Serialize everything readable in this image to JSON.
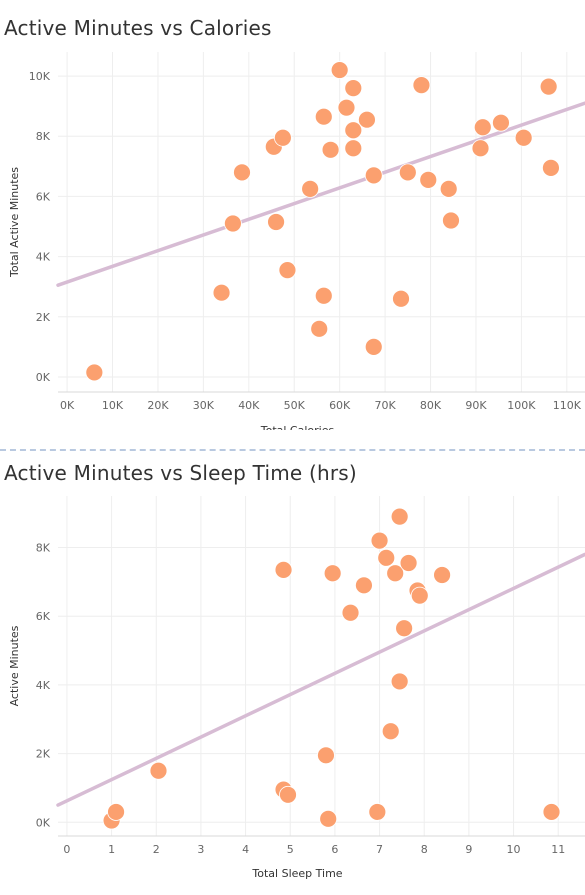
{
  "colors": {
    "point": "#fba06f",
    "trend": "#d7bcd4",
    "grid": "#eeeeee",
    "text": "#666666"
  },
  "chart_data": [
    {
      "type": "scatter",
      "title": "Active Minutes vs Calories",
      "xlabel": "Total Calories",
      "ylabel": "Total Active Minutes",
      "xlim": [
        -2000,
        114000
      ],
      "ylim": [
        -500,
        10800
      ],
      "x_ticks": [
        0,
        10000,
        20000,
        30000,
        40000,
        50000,
        60000,
        70000,
        80000,
        90000,
        100000,
        110000
      ],
      "x_tick_labels": [
        "0K",
        "10K",
        "20K",
        "30K",
        "40K",
        "50K",
        "60K",
        "70K",
        "80K",
        "90K",
        "100K",
        "110K"
      ],
      "y_ticks": [
        0,
        2000,
        4000,
        6000,
        8000,
        10000
      ],
      "y_tick_labels": [
        "0K",
        "2K",
        "4K",
        "6K",
        "8K",
        "10K"
      ],
      "trendline": [
        [
          -2000,
          3050
        ],
        [
          114000,
          9100
        ]
      ],
      "points": [
        [
          6000,
          150
        ],
        [
          34000,
          2800
        ],
        [
          36500,
          5100
        ],
        [
          38500,
          6800
        ],
        [
          45500,
          7650
        ],
        [
          46000,
          5150
        ],
        [
          47500,
          7950
        ],
        [
          48500,
          3550
        ],
        [
          53500,
          6250
        ],
        [
          55500,
          1600
        ],
        [
          56500,
          8650
        ],
        [
          56500,
          2700
        ],
        [
          58000,
          7550
        ],
        [
          60000,
          10200
        ],
        [
          61500,
          8950
        ],
        [
          63000,
          9600
        ],
        [
          63000,
          8200
        ],
        [
          63000,
          7600
        ],
        [
          66000,
          8550
        ],
        [
          67500,
          1000
        ],
        [
          67500,
          6700
        ],
        [
          73500,
          2600
        ],
        [
          75000,
          6800
        ],
        [
          78000,
          9700
        ],
        [
          79500,
          6550
        ],
        [
          84000,
          6250
        ],
        [
          84500,
          5200
        ],
        [
          91000,
          7600
        ],
        [
          91500,
          8300
        ],
        [
          95500,
          8450
        ],
        [
          100500,
          7950
        ],
        [
          106000,
          9650
        ],
        [
          106500,
          6950
        ]
      ]
    },
    {
      "type": "scatter",
      "title": "Active Minutes vs Sleep Time (hrs)",
      "xlabel": "Total Sleep Time",
      "ylabel": "Active Minutes",
      "xlim": [
        -0.2,
        11.6
      ],
      "ylim": [
        -400,
        9500
      ],
      "x_ticks": [
        0,
        1,
        2,
        3,
        4,
        5,
        6,
        7,
        8,
        9,
        10,
        11
      ],
      "x_tick_labels": [
        "0",
        "1",
        "2",
        "3",
        "4",
        "5",
        "6",
        "7",
        "8",
        "9",
        "10",
        "11"
      ],
      "y_ticks": [
        0,
        2000,
        4000,
        6000,
        8000
      ],
      "y_tick_labels": [
        "0K",
        "2K",
        "4K",
        "6K",
        "8K"
      ],
      "trendline": [
        [
          -0.2,
          500
        ],
        [
          11.6,
          7800
        ]
      ],
      "points": [
        [
          1.0,
          50
        ],
        [
          1.1,
          300
        ],
        [
          2.05,
          1500
        ],
        [
          4.85,
          7350
        ],
        [
          4.85,
          950
        ],
        [
          4.95,
          800
        ],
        [
          5.8,
          1950
        ],
        [
          5.85,
          100
        ],
        [
          5.95,
          7250
        ],
        [
          6.65,
          6900
        ],
        [
          6.35,
          6100
        ],
        [
          6.95,
          300
        ],
        [
          7.0,
          8200
        ],
        [
          7.15,
          7700
        ],
        [
          7.25,
          2650
        ],
        [
          7.35,
          7250
        ],
        [
          7.45,
          8900
        ],
        [
          7.45,
          4100
        ],
        [
          7.55,
          5650
        ],
        [
          7.65,
          7550
        ],
        [
          7.85,
          6750
        ],
        [
          7.9,
          6600
        ],
        [
          8.4,
          7200
        ],
        [
          10.85,
          300
        ]
      ]
    }
  ]
}
